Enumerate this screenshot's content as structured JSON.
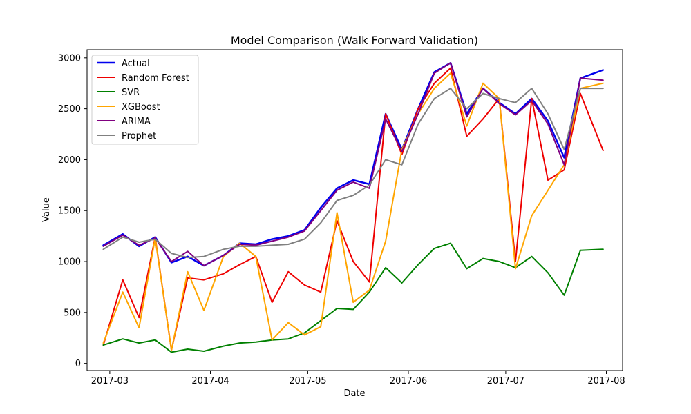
{
  "chart_data": {
    "type": "line",
    "title": "Model Comparison (Walk Forward Validation)",
    "xlabel": "Date",
    "ylabel": "Value",
    "x_axis": {
      "type": "date",
      "range": [
        "2017-02-22",
        "2017-08-06"
      ],
      "ticks": [
        {
          "date": "2017-03-01",
          "label": "2017-03"
        },
        {
          "date": "2017-04-01",
          "label": "2017-04"
        },
        {
          "date": "2017-05-01",
          "label": "2017-05"
        },
        {
          "date": "2017-06-01",
          "label": "2017-06"
        },
        {
          "date": "2017-07-01",
          "label": "2017-07"
        },
        {
          "date": "2017-08-01",
          "label": "2017-08"
        }
      ]
    },
    "y_axis": {
      "range": [
        -70,
        3080
      ],
      "ticks": [
        0,
        500,
        1000,
        1500,
        2000,
        2500,
        3000
      ]
    },
    "grid": false,
    "legend_position": "upper-left",
    "x": [
      "2017-02-27",
      "2017-03-05",
      "2017-03-10",
      "2017-03-15",
      "2017-03-20",
      "2017-03-25",
      "2017-03-30",
      "2017-04-05",
      "2017-04-10",
      "2017-04-15",
      "2017-04-20",
      "2017-04-25",
      "2017-04-30",
      "2017-05-05",
      "2017-05-10",
      "2017-05-15",
      "2017-05-20",
      "2017-05-25",
      "2017-05-30",
      "2017-06-04",
      "2017-06-09",
      "2017-06-14",
      "2017-06-19",
      "2017-06-24",
      "2017-06-29",
      "2017-07-04",
      "2017-07-09",
      "2017-07-14",
      "2017-07-19",
      "2017-07-24",
      "2017-07-31"
    ],
    "series": [
      {
        "name": "Actual",
        "color": "#0000ee",
        "width": 2.5,
        "values": [
          1160,
          1270,
          1150,
          1240,
          990,
          1050,
          960,
          1060,
          1180,
          1170,
          1220,
          1250,
          1310,
          1530,
          1720,
          1800,
          1760,
          2450,
          2100,
          2500,
          2860,
          2950,
          2450,
          2700,
          2560,
          2450,
          2600,
          2380,
          2020,
          2800,
          2880
        ]
      },
      {
        "name": "Random Forest",
        "color": "#ee0000",
        "width": 2,
        "values": [
          180,
          820,
          450,
          1240,
          130,
          840,
          820,
          880,
          970,
          1050,
          600,
          900,
          770,
          700,
          1400,
          1000,
          800,
          2450,
          2050,
          2500,
          2750,
          2900,
          2230,
          2400,
          2600,
          1000,
          2600,
          1800,
          1900,
          2650,
          2090
        ]
      },
      {
        "name": "SVR",
        "color": "#008000",
        "width": 2,
        "values": [
          180,
          240,
          200,
          230,
          110,
          140,
          120,
          170,
          200,
          210,
          230,
          240,
          300,
          420,
          540,
          530,
          700,
          940,
          790,
          970,
          1130,
          1180,
          930,
          1030,
          1000,
          940,
          1050,
          890,
          670,
          1110,
          1120
        ]
      },
      {
        "name": "XGBoost",
        "color": "#ffa500",
        "width": 2,
        "values": [
          200,
          700,
          350,
          1230,
          130,
          900,
          520,
          1050,
          1180,
          1050,
          230,
          400,
          280,
          360,
          1480,
          600,
          720,
          1200,
          2100,
          2450,
          2700,
          2850,
          2330,
          2750,
          2600,
          930,
          1450,
          1700,
          1950,
          2700,
          2750
        ]
      },
      {
        "name": "ARIMA",
        "color": "#800080",
        "width": 2,
        "values": [
          1150,
          1260,
          1160,
          1230,
          1000,
          1100,
          960,
          1060,
          1170,
          1160,
          1200,
          1240,
          1300,
          1500,
          1700,
          1780,
          1720,
          2400,
          2080,
          2450,
          2850,
          2950,
          2420,
          2700,
          2550,
          2440,
          2580,
          2350,
          1950,
          2800,
          2780
        ]
      },
      {
        "name": "Prophet",
        "color": "#808080",
        "width": 2,
        "values": [
          1120,
          1240,
          1190,
          1220,
          1080,
          1040,
          1050,
          1120,
          1150,
          1150,
          1160,
          1170,
          1220,
          1380,
          1600,
          1650,
          1750,
          2000,
          1950,
          2350,
          2600,
          2700,
          2500,
          2650,
          2600,
          2560,
          2700,
          2450,
          2100,
          2700,
          2700
        ]
      }
    ]
  }
}
